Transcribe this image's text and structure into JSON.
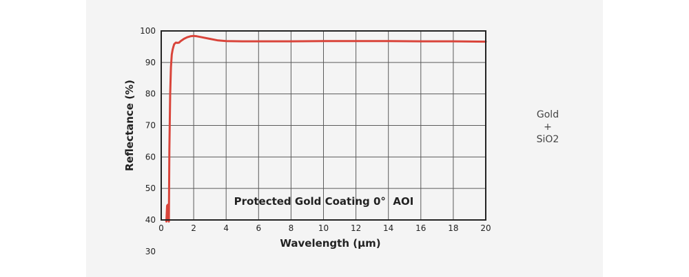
{
  "chart_data": {
    "type": "line",
    "title": "Protected Gold Coating 0°  AOI",
    "xlabel": "Wavelength (μm)",
    "ylabel": "Reflectance (%)",
    "xlim": [
      0,
      20
    ],
    "ylim": [
      40,
      100
    ],
    "x_ticks": [
      0,
      2,
      4,
      6,
      8,
      10,
      12,
      14,
      16,
      18,
      20
    ],
    "y_ticks": [
      40,
      50,
      60,
      70,
      80,
      90,
      100
    ],
    "extra_y_tick": "30",
    "grid": true,
    "line_color": "#d9443a",
    "series": [
      {
        "x": [
          0.32,
          0.36,
          0.4,
          0.44,
          0.47,
          0.5,
          0.55,
          0.6,
          0.65,
          0.7,
          0.75,
          0.8,
          0.9,
          1.0,
          1.1,
          1.2,
          1.4,
          1.6,
          1.8,
          2.0,
          2.2,
          2.5,
          3.0,
          3.5,
          4.0,
          5.0,
          6.0,
          8.0,
          10.0,
          12.0,
          14.0,
          16.0,
          18.0,
          20.0
        ],
        "y": [
          39.5,
          44.5,
          44.8,
          40.0,
          39.5,
          62.0,
          80.0,
          88.5,
          92.5,
          94.0,
          95.0,
          95.8,
          96.3,
          96.2,
          96.3,
          96.8,
          97.5,
          98.0,
          98.3,
          98.4,
          98.3,
          98.0,
          97.5,
          97.0,
          96.8,
          96.7,
          96.7,
          96.7,
          96.8,
          96.8,
          96.8,
          96.7,
          96.7,
          96.6
        ]
      }
    ]
  },
  "side_note": {
    "line1": "Gold",
    "line2": "+",
    "line3": "SiO2"
  }
}
